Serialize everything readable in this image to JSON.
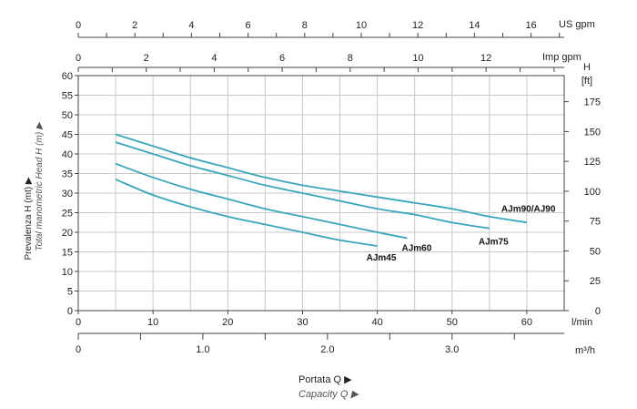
{
  "chart_data": {
    "type": "line",
    "title": "",
    "xlabel": "Portata Q ▶",
    "xlabel_en": "Capacity Q ▶",
    "ylabel": "Prevalenza H (mt) ▶",
    "ylabel_en": "Total manometric Head H (m) ▶",
    "x_unit": "l/min",
    "y_unit": "",
    "xlim": [
      0,
      65
    ],
    "ylim": [
      0,
      60
    ],
    "grid": true,
    "x_ticks": [
      "0",
      "10",
      "20",
      "30",
      "40",
      "50",
      "60"
    ],
    "y_ticks": [
      "0",
      "5",
      "10",
      "15",
      "20",
      "25",
      "30",
      "35",
      "40",
      "45",
      "50",
      "55",
      "60"
    ],
    "secondary_axes": {
      "ft": {
        "label": "H",
        "unit": "[ft]",
        "ticks": [
          "0",
          "25",
          "50",
          "75",
          "100",
          "125",
          "150",
          "175"
        ]
      },
      "us_gpm": {
        "label": "US gpm",
        "ticks": [
          "0",
          "2",
          "4",
          "6",
          "8",
          "10",
          "12",
          "14",
          "16"
        ]
      },
      "imp_gpm": {
        "label": "Imp gpm",
        "ticks": [
          "0",
          "2",
          "4",
          "6",
          "8",
          "10",
          "12"
        ]
      },
      "m3h": {
        "label": "m³/h",
        "ticks": [
          "0",
          "1.0",
          "2.0",
          "3.0"
        ]
      }
    },
    "series": [
      {
        "name": "AJm90/AJ90",
        "x": [
          5,
          10,
          15,
          20,
          25,
          30,
          35,
          40,
          45,
          50,
          55,
          60
        ],
        "y": [
          45,
          42,
          39,
          36.5,
          34,
          32,
          30.5,
          29,
          27.5,
          26,
          24,
          22.5
        ]
      },
      {
        "name": "AJm75",
        "x": [
          5,
          10,
          15,
          20,
          25,
          30,
          35,
          40,
          45,
          50,
          55
        ],
        "y": [
          43,
          40,
          37,
          34.5,
          32,
          30,
          28,
          26,
          24.5,
          22.5,
          21
        ]
      },
      {
        "name": "AJm60",
        "x": [
          5,
          10,
          15,
          20,
          25,
          30,
          35,
          40,
          44
        ],
        "y": [
          37.5,
          34,
          31,
          28.5,
          26,
          24,
          22,
          20,
          18.5
        ]
      },
      {
        "name": "AJm45",
        "x": [
          5,
          10,
          15,
          20,
          25,
          30,
          35,
          40
        ],
        "y": [
          33.5,
          29.5,
          26.5,
          24,
          22,
          20,
          18,
          16.5
        ]
      }
    ]
  },
  "colors": {
    "curve": "#3aa6b9",
    "grid": "#c8c8c8",
    "axis": "#444444",
    "text": "#222222"
  }
}
